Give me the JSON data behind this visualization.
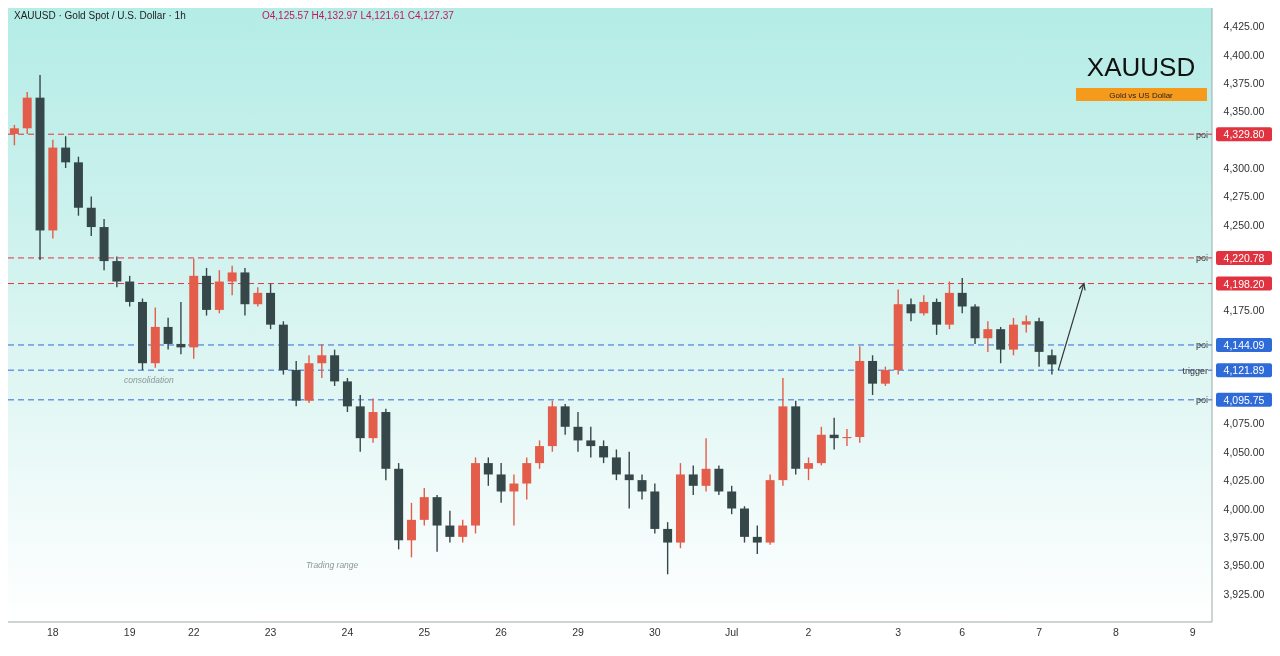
{
  "chart_data": {
    "type": "candlestick",
    "title": "XAUUSD · Gold Spot / U.S. Dollar · 1h",
    "subtitle": "Gold vs US Dollar",
    "annotations": [
      "O4,125.57 H4,132.97 L4,121.61 C4,127.37",
      "XAUUSD",
      "consolidation",
      "Trading range",
      "4,329.80",
      "4,220.78",
      "4,198.20",
      "4,144.09",
      "4,121.89",
      "4,095.75"
    ],
    "categories": [
      null,
      null,
      null,
      "18",
      null,
      null,
      null,
      null,
      null,
      "19",
      null,
      null,
      null,
      null,
      "22",
      null,
      null,
      null,
      null,
      null,
      "23",
      null,
      null,
      null,
      null,
      null,
      "24",
      null,
      null,
      null,
      null,
      null,
      "25",
      null,
      null,
      null,
      null,
      null,
      "26",
      null,
      null,
      null,
      null,
      null,
      "29",
      null,
      null,
      null,
      null,
      null,
      "30",
      null,
      null,
      null,
      null,
      null,
      "Jul",
      null,
      null,
      null,
      null,
      null,
      "2",
      null,
      null,
      null,
      null,
      null,
      null,
      "3",
      null,
      null,
      null,
      null,
      "6",
      null,
      null,
      null,
      null,
      null,
      "7",
      null,
      null,
      null,
      null,
      null,
      "8",
      null,
      null,
      null,
      null,
      null,
      "9",
      null
    ],
    "ohlc": [
      [
        4330,
        4338,
        4320,
        4335
      ],
      [
        4335,
        4367,
        4330,
        4362
      ],
      [
        4362,
        4382,
        4219,
        4245
      ],
      [
        4245,
        4325,
        4238,
        4318
      ],
      [
        4318,
        4328,
        4300,
        4305
      ],
      [
        4305,
        4310,
        4258,
        4265
      ],
      [
        4265,
        4275,
        4240,
        4248
      ],
      [
        4248,
        4255,
        4210,
        4218
      ],
      [
        4218,
        4222,
        4195,
        4200
      ],
      [
        4200,
        4205,
        4178,
        4182
      ],
      [
        4182,
        4185,
        4122,
        4128
      ],
      [
        4128,
        4177,
        4124,
        4160
      ],
      [
        4160,
        4168,
        4140,
        4145
      ],
      [
        4145,
        4182,
        4136,
        4142
      ],
      [
        4142,
        4220,
        4132,
        4205
      ],
      [
        4205,
        4212,
        4170,
        4175
      ],
      [
        4175,
        4210,
        4172,
        4200
      ],
      [
        4200,
        4214,
        4188,
        4208
      ],
      [
        4208,
        4212,
        4170,
        4180
      ],
      [
        4180,
        4195,
        4178,
        4190
      ],
      [
        4190,
        4198,
        4158,
        4162
      ],
      [
        4162,
        4165,
        4118,
        4122
      ],
      [
        4122,
        4130,
        4090,
        4095
      ],
      [
        4095,
        4135,
        4093,
        4128
      ],
      [
        4128,
        4145,
        4115,
        4135
      ],
      [
        4135,
        4140,
        4108,
        4112
      ],
      [
        4112,
        4115,
        4085,
        4090
      ],
      [
        4090,
        4100,
        4050,
        4062
      ],
      [
        4062,
        4097,
        4058,
        4085
      ],
      [
        4085,
        4088,
        4025,
        4035
      ],
      [
        4035,
        4040,
        3964,
        3972
      ],
      [
        3972,
        4005,
        3957,
        3990
      ],
      [
        3990,
        4018,
        3985,
        4010
      ],
      [
        4010,
        4012,
        3962,
        3985
      ],
      [
        3985,
        3998,
        3970,
        3975
      ],
      [
        3975,
        3990,
        3970,
        3985
      ],
      [
        3985,
        4045,
        3978,
        4040
      ],
      [
        4040,
        4045,
        4020,
        4030
      ],
      [
        4030,
        4040,
        4005,
        4015
      ],
      [
        4015,
        4030,
        3985,
        4022
      ],
      [
        4022,
        4045,
        4008,
        4040
      ],
      [
        4040,
        4060,
        4035,
        4055
      ],
      [
        4055,
        4095,
        4050,
        4090
      ],
      [
        4090,
        4092,
        4065,
        4072
      ],
      [
        4072,
        4085,
        4050,
        4060
      ],
      [
        4060,
        4072,
        4045,
        4055
      ],
      [
        4055,
        4060,
        4040,
        4045
      ],
      [
        4045,
        4052,
        4025,
        4030
      ],
      [
        4030,
        4050,
        4000,
        4025
      ],
      [
        4025,
        4030,
        4008,
        4015
      ],
      [
        4015,
        4022,
        3978,
        3982
      ],
      [
        3982,
        3988,
        3942,
        3970
      ],
      [
        3970,
        4040,
        3965,
        4030
      ],
      [
        4030,
        4038,
        4012,
        4020
      ],
      [
        4020,
        4062,
        4015,
        4035
      ],
      [
        4035,
        4038,
        4012,
        4015
      ],
      [
        4015,
        4020,
        3995,
        4000
      ],
      [
        4000,
        4002,
        3970,
        3975
      ],
      [
        3975,
        3985,
        3960,
        3970
      ],
      [
        3970,
        4030,
        3968,
        4025
      ],
      [
        4025,
        4115,
        4020,
        4090
      ],
      [
        4090,
        4095,
        4030,
        4035
      ],
      [
        4035,
        4045,
        4025,
        4040
      ],
      [
        4040,
        4072,
        4038,
        4065
      ],
      [
        4065,
        4080,
        4052,
        4062
      ],
      [
        4062,
        4070,
        4055,
        4063
      ],
      [
        4063,
        4143,
        4058,
        4130
      ],
      [
        4130,
        4135,
        4100,
        4110
      ],
      [
        4110,
        4125,
        4108,
        4122
      ],
      [
        4122,
        4193,
        4118,
        4180
      ],
      [
        4180,
        4185,
        4165,
        4172
      ],
      [
        4172,
        4188,
        4170,
        4182
      ],
      [
        4182,
        4185,
        4153,
        4162
      ],
      [
        4162,
        4200,
        4158,
        4190
      ],
      [
        4190,
        4203,
        4172,
        4178
      ],
      [
        4178,
        4180,
        4145,
        4150
      ],
      [
        4150,
        4165,
        4138,
        4158
      ],
      [
        4158,
        4160,
        4128,
        4140
      ],
      [
        4140,
        4168,
        4135,
        4162
      ],
      [
        4162,
        4170,
        4155,
        4165
      ],
      [
        4165,
        4168,
        4125,
        4138
      ],
      [
        4135,
        4140,
        4118,
        4127
      ],
      null,
      null,
      null,
      null,
      null,
      null,
      null,
      null,
      null,
      null,
      null,
      null
    ],
    "ylim": [
      3900,
      4441
    ],
    "yticks": [
      {
        "value": 3925,
        "label": "3,925.00"
      },
      {
        "value": 3950,
        "label": "3,950.00"
      },
      {
        "value": 3975,
        "label": "3,975.00"
      },
      {
        "value": 4000,
        "label": "4,000.00"
      },
      {
        "value": 4025,
        "label": "4,025.00"
      },
      {
        "value": 4050,
        "label": "4,050.00"
      },
      {
        "value": 4075,
        "label": "4,075.00"
      },
      {
        "value": 4175,
        "label": "4,175.00"
      },
      {
        "value": 4250,
        "label": "4,250.00"
      },
      {
        "value": 4275,
        "label": "4,275.00"
      },
      {
        "value": 4300,
        "label": "4,300.00"
      },
      {
        "value": 4350,
        "label": "4,350.00"
      },
      {
        "value": 4375,
        "label": "4,375.00"
      },
      {
        "value": 4400,
        "label": "4,400.00"
      },
      {
        "value": 4425,
        "label": "4,425.00"
      }
    ],
    "ref_lines": [
      {
        "axis": "y",
        "value": 4329.8,
        "label": "poi",
        "color": "#e0323f",
        "line_style": "dashed"
      },
      {
        "axis": "y",
        "value": 4220.78,
        "label": "poi",
        "color": "#e0323f",
        "line_style": "dashed"
      },
      {
        "axis": "y",
        "value": 4198.2,
        "label": null,
        "color": "#e0323f",
        "line_style": "dashed"
      },
      {
        "axis": "y",
        "value": 4144.09,
        "label": "poi",
        "color": "#2f6bd8",
        "line_style": "dashed"
      },
      {
        "axis": "y",
        "value": 4121.89,
        "label": "trigger",
        "color": "#2f6bd8",
        "line_style": "dashed"
      },
      {
        "axis": "y",
        "value": 4095.75,
        "label": "poi",
        "color": "#2f6bd8",
        "line_style": "dashed"
      }
    ]
  }
}
